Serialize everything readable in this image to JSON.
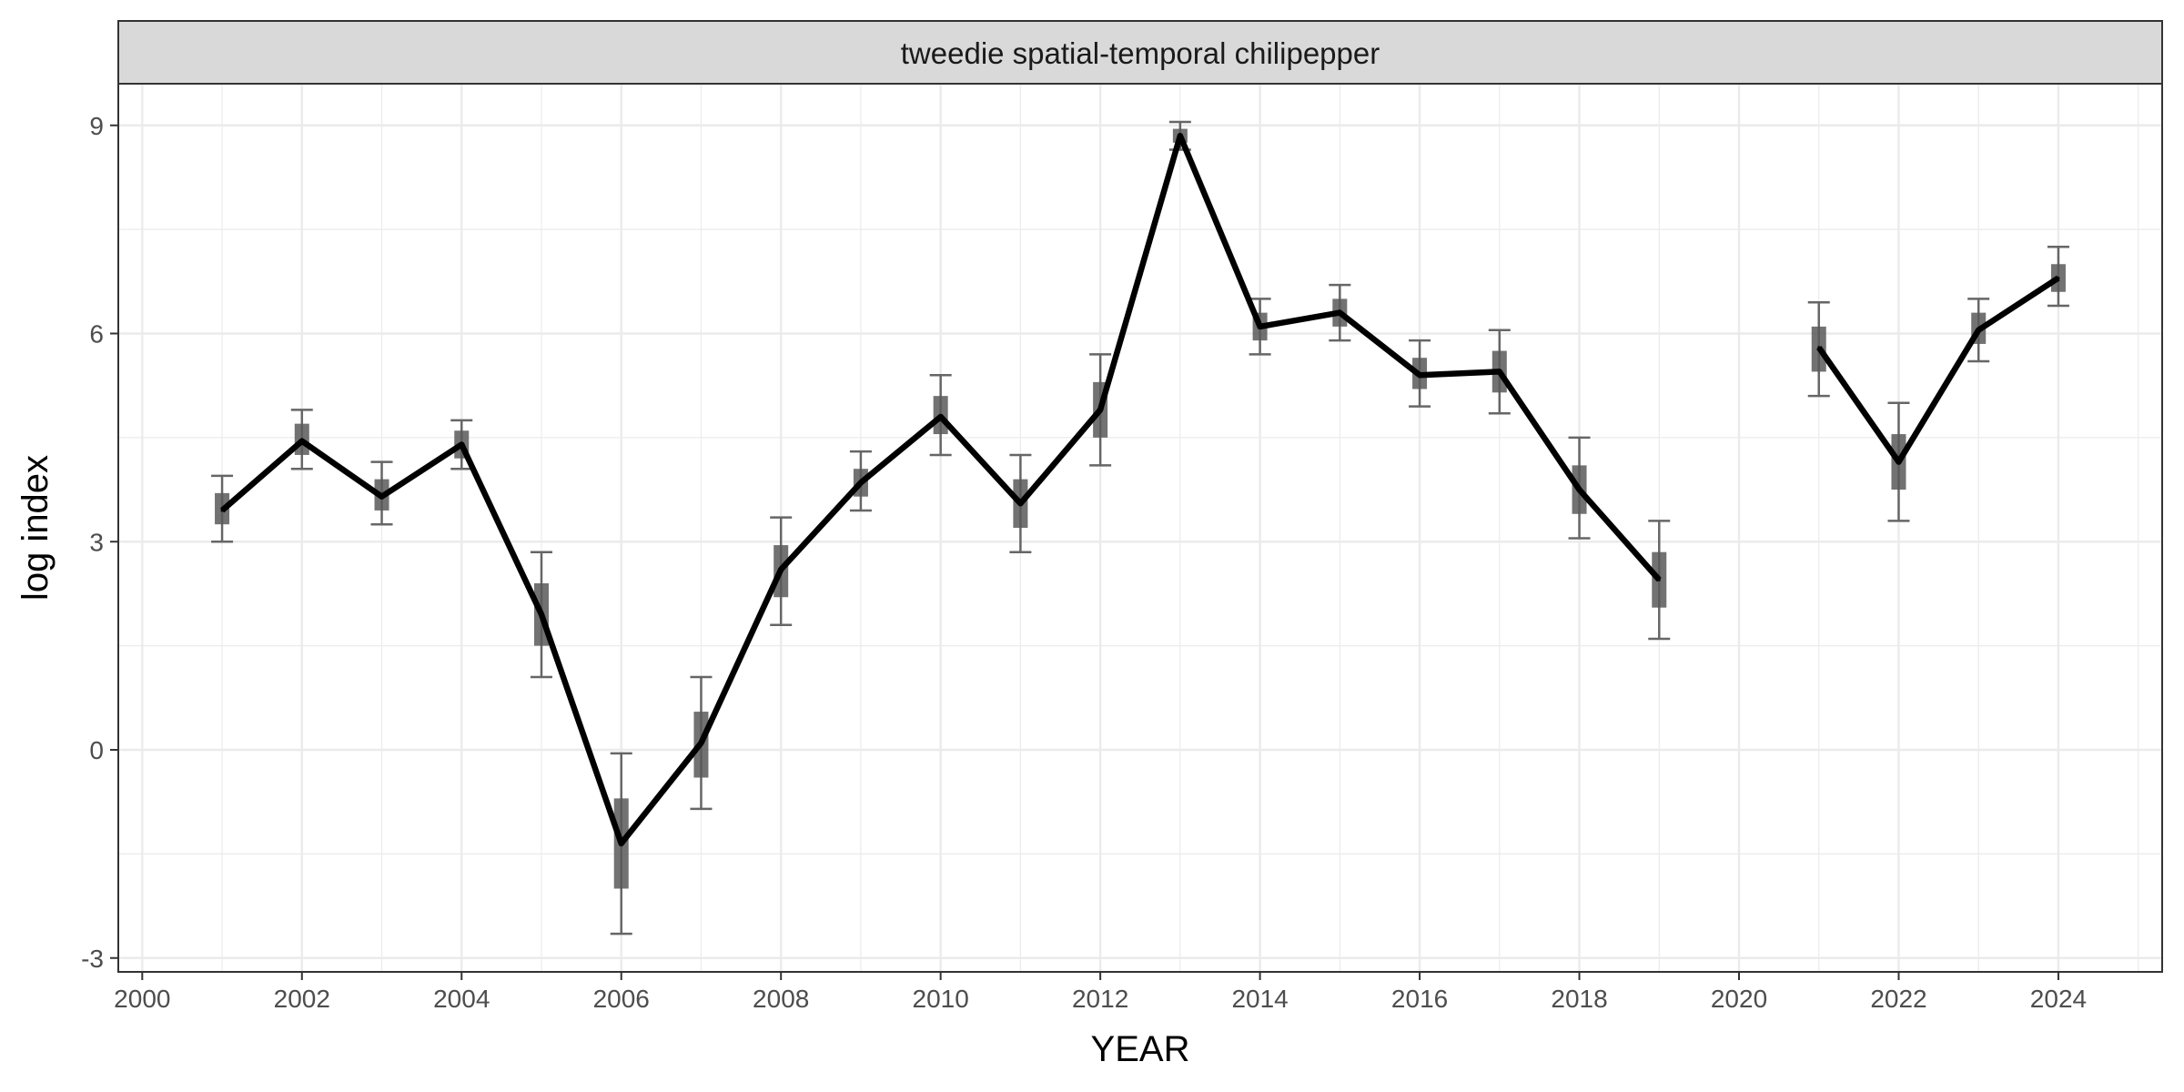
{
  "chart_data": {
    "type": "line",
    "facet_label": "tweedie spatial-temporal chilipepper",
    "xlabel": "YEAR",
    "ylabel": "log index",
    "xlim": [
      1999.7,
      2025.3
    ],
    "ylim": [
      -3.2,
      9.6
    ],
    "x_ticks": [
      2000,
      2002,
      2004,
      2006,
      2008,
      2010,
      2012,
      2014,
      2016,
      2018,
      2020,
      2022,
      2024
    ],
    "x_tick_labels": [
      "2000",
      "2002",
      "2004",
      "2006",
      "2008",
      "2010",
      "2012",
      "2014",
      "2016",
      "2018",
      "2020",
      "2022",
      "2024"
    ],
    "y_ticks": [
      -3,
      0,
      3,
      6,
      9
    ],
    "y_tick_labels": [
      "-3",
      "0",
      "3",
      "6",
      "9"
    ],
    "y_minor_ticks": [
      -1.5,
      1.5,
      4.5,
      7.5
    ],
    "grid": true,
    "colors": {
      "line": "#000000",
      "errorbar": "#666666",
      "inner_band": "#595959",
      "grid": "#ebebeb",
      "strip_fill": "#d9d9d9",
      "panel_border": "#333333"
    },
    "series": [
      {
        "points": [
          {
            "x": 2001,
            "y": 3.45,
            "lo": 3.0,
            "hi": 3.95,
            "ilo": 3.25,
            "ihi": 3.7
          },
          {
            "x": 2002,
            "y": 4.45,
            "lo": 4.05,
            "hi": 4.9,
            "ilo": 4.25,
            "ihi": 4.7
          },
          {
            "x": 2003,
            "y": 3.65,
            "lo": 3.25,
            "hi": 4.15,
            "ilo": 3.45,
            "ihi": 3.9
          },
          {
            "x": 2004,
            "y": 4.4,
            "lo": 4.05,
            "hi": 4.75,
            "ilo": 4.2,
            "ihi": 4.6
          },
          {
            "x": 2005,
            "y": 1.95,
            "lo": 1.05,
            "hi": 2.85,
            "ilo": 1.5,
            "ihi": 2.4
          },
          {
            "x": 2006,
            "y": -1.35,
            "lo": -2.65,
            "hi": -0.05,
            "ilo": -2.0,
            "ihi": -0.7
          },
          {
            "x": 2007,
            "y": 0.1,
            "lo": -0.85,
            "hi": 1.05,
            "ilo": -0.4,
            "ihi": 0.55
          },
          {
            "x": 2008,
            "y": 2.6,
            "lo": 1.8,
            "hi": 3.35,
            "ilo": 2.2,
            "ihi": 2.95
          },
          {
            "x": 2009,
            "y": 3.85,
            "lo": 3.45,
            "hi": 4.3,
            "ilo": 3.65,
            "ihi": 4.05
          },
          {
            "x": 2010,
            "y": 4.8,
            "lo": 4.25,
            "hi": 5.4,
            "ilo": 4.55,
            "ihi": 5.1
          },
          {
            "x": 2011,
            "y": 3.55,
            "lo": 2.85,
            "hi": 4.25,
            "ilo": 3.2,
            "ihi": 3.9
          },
          {
            "x": 2012,
            "y": 4.9,
            "lo": 4.1,
            "hi": 5.7,
            "ilo": 4.5,
            "ihi": 5.3
          },
          {
            "x": 2013,
            "y": 8.85,
            "lo": 8.65,
            "hi": 9.05,
            "ilo": 8.75,
            "ihi": 8.95
          },
          {
            "x": 2014,
            "y": 6.1,
            "lo": 5.7,
            "hi": 6.5,
            "ilo": 5.9,
            "ihi": 6.3
          },
          {
            "x": 2015,
            "y": 6.3,
            "lo": 5.9,
            "hi": 6.7,
            "ilo": 6.1,
            "ihi": 6.5
          },
          {
            "x": 2016,
            "y": 5.4,
            "lo": 4.95,
            "hi": 5.9,
            "ilo": 5.2,
            "ihi": 5.65
          },
          {
            "x": 2017,
            "y": 5.45,
            "lo": 4.85,
            "hi": 6.05,
            "ilo": 5.15,
            "ihi": 5.75
          },
          {
            "x": 2018,
            "y": 3.75,
            "lo": 3.05,
            "hi": 4.5,
            "ilo": 3.4,
            "ihi": 4.1
          },
          {
            "x": 2019,
            "y": 2.45,
            "lo": 1.6,
            "hi": 3.3,
            "ilo": 2.05,
            "ihi": 2.85
          },
          {
            "x": 2021,
            "y": 5.8,
            "lo": 5.1,
            "hi": 6.45,
            "ilo": 5.45,
            "ihi": 6.1
          },
          {
            "x": 2022,
            "y": 4.15,
            "lo": 3.3,
            "hi": 5.0,
            "ilo": 3.75,
            "ihi": 4.55
          },
          {
            "x": 2023,
            "y": 6.05,
            "lo": 5.6,
            "hi": 6.5,
            "ilo": 5.85,
            "ihi": 6.3
          },
          {
            "x": 2024,
            "y": 6.8,
            "lo": 6.4,
            "hi": 7.25,
            "ilo": 6.6,
            "ihi": 7.0
          }
        ]
      }
    ]
  }
}
